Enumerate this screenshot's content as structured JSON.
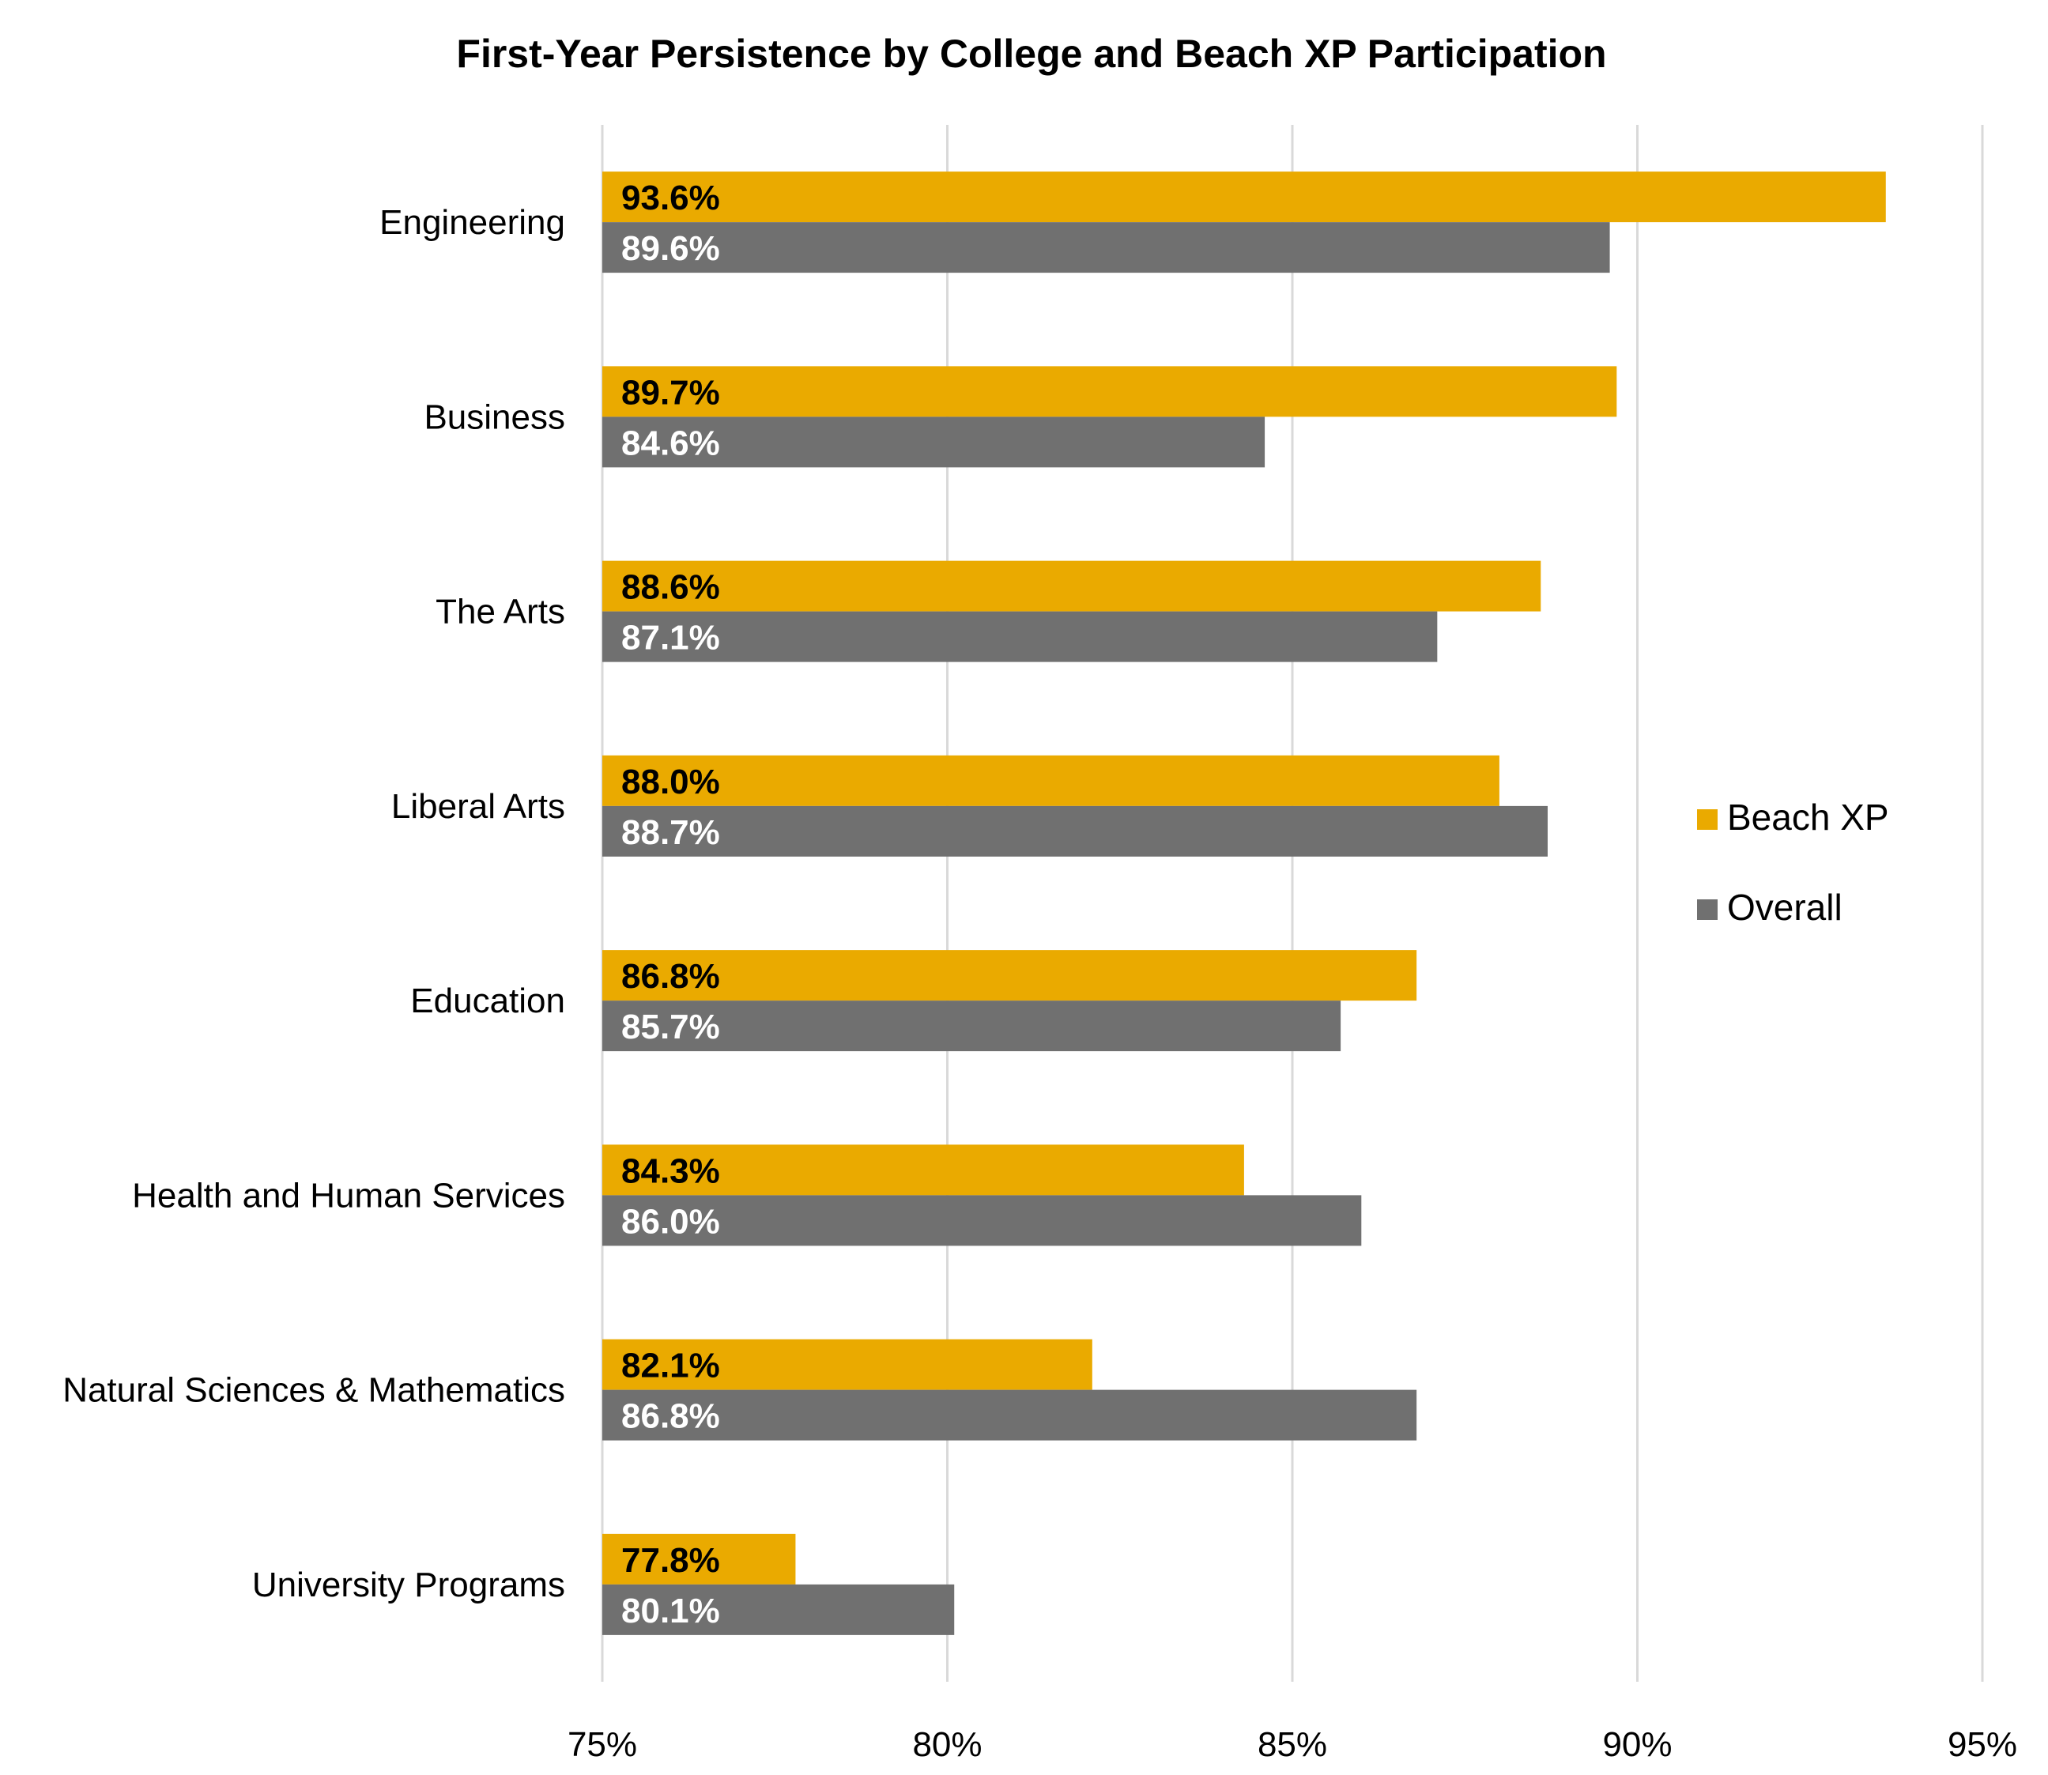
{
  "chart_data": {
    "type": "bar",
    "orientation": "horizontal",
    "title": "First-Year Persistence by College and Beach XP Participation",
    "categories": [
      "Engineering",
      "Business",
      "The Arts",
      "Liberal Arts",
      "Education",
      "Health and Human Services",
      "Natural Sciences & Mathematics",
      "University Programs"
    ],
    "series": [
      {
        "name": "Beach XP",
        "color": "#EAAA00",
        "label_color": "#000000",
        "values": [
          93.6,
          89.7,
          88.6,
          88.0,
          86.8,
          84.3,
          82.1,
          77.8
        ],
        "labels": [
          "93.6%",
          "89.7%",
          "88.6%",
          "88.0%",
          "86.8%",
          "84.3%",
          "82.1%",
          "77.8%"
        ]
      },
      {
        "name": "Overall",
        "color": "#707070",
        "label_color": "#ffffff",
        "values": [
          89.6,
          84.6,
          87.1,
          88.7,
          85.7,
          86.0,
          86.8,
          80.1
        ],
        "labels": [
          "89.6%",
          "84.6%",
          "87.1%",
          "88.7%",
          "85.7%",
          "86.0%",
          "86.8%",
          "80.1%"
        ]
      }
    ],
    "x_ticks": [
      75,
      80,
      85,
      90,
      95
    ],
    "x_tick_labels": [
      "75%",
      "80%",
      "85%",
      "90%",
      "95%"
    ],
    "xlim": [
      75,
      95
    ],
    "xlabel": "",
    "ylabel": "",
    "grid": "vertical",
    "legend_position": "right"
  }
}
